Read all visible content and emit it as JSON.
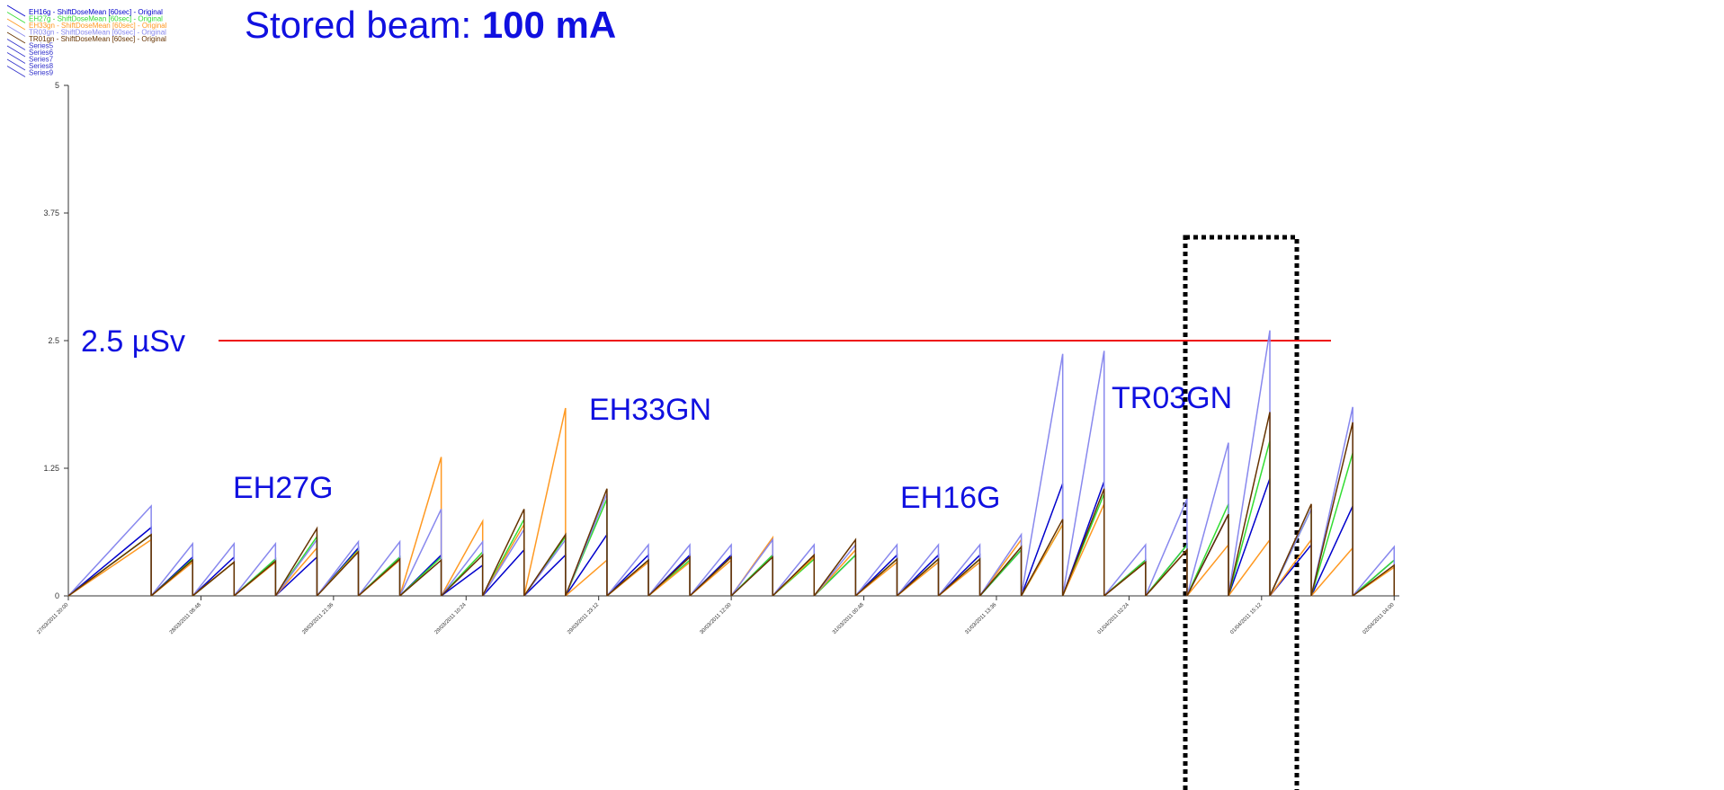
{
  "chart_data": {
    "type": "line",
    "title": "Stored beam: ",
    "title_value": "100 mA",
    "annotations": [
      "EH27G",
      "EH33GN",
      "EH16G",
      "TR03GN"
    ],
    "threshold": {
      "value": 2.5,
      "label": "2.5 µSv",
      "color": "#ee1111"
    },
    "x": [
      "28/03/2011 04:00",
      "28/03/2011 08:00",
      "28/03/2011 12:00",
      "28/03/2011 16:00",
      "28/03/2011 20:00",
      "29/03/2011 00:00",
      "29/03/2011 04:00",
      "29/03/2011 08:00",
      "29/03/2011 12:00",
      "29/03/2011 16:00",
      "29/03/2011 20:00",
      "30/03/2011 00:00",
      "30/03/2011 04:00",
      "30/03/2011 08:00",
      "30/03/2011 12:00",
      "30/03/2011 16:00",
      "30/03/2011 20:00",
      "31/03/2011 00:00",
      "31/03/2011 04:00",
      "31/03/2011 08:00",
      "31/03/2011 12:00",
      "31/03/2011 16:00",
      "31/03/2011 20:00",
      "01/04/2011 00:00",
      "01/04/2011 04:00",
      "01/04/2011 08:00",
      "01/04/2011 12:00",
      "01/04/2011 16:00",
      "01/04/2011 20:00",
      "02/04/2011 00:00",
      "02/04/2011 04:00"
    ],
    "xlim": [
      "27/03/2011 20:00",
      "02/04/2011 04:30"
    ],
    "xticks": [
      "27/03/2011 20:00",
      "28/03/2011 08:48",
      "28/03/2011 21:36",
      "29/03/2011 10:24",
      "29/03/2011 23:12",
      "30/03/2011 12:00",
      "31/03/2011 00:48",
      "31/03/2011 13:36",
      "01/04/2011 02:24",
      "01/04/2011 15:12",
      "02/04/2011 04:00"
    ],
    "ylim": [
      0,
      5
    ],
    "yticks": [
      0,
      1.25,
      2.5,
      3.75,
      5
    ],
    "series": [
      {
        "name": "EH16g - ShiftDoseMean [60sec] - Original",
        "color": "#0000cc",
        "values": [
          0.67,
          0.38,
          0.38,
          0.36,
          0.38,
          0.47,
          0.38,
          0.4,
          0.3,
          0.45,
          0.4,
          0.6,
          0.4,
          0.4,
          0.4,
          0.4,
          0.4,
          0.4,
          0.4,
          0.4,
          0.4,
          0.45,
          1.1,
          1.12,
          0.35,
          0.5,
          0.8,
          1.15,
          0.5,
          0.88,
          0.35
        ]
      },
      {
        "name": "EH27g - ShiftDoseMean [60sec] - Original",
        "color": "#33dd33",
        "values": [
          0.6,
          0.36,
          0.33,
          0.36,
          0.58,
          0.45,
          0.38,
          0.38,
          0.43,
          0.75,
          0.58,
          0.95,
          0.35,
          0.35,
          0.38,
          0.4,
          0.36,
          0.4,
          0.36,
          0.36,
          0.36,
          0.45,
          0.7,
          1.0,
          0.35,
          0.5,
          0.9,
          1.52,
          0.85,
          1.4,
          0.35
        ]
      },
      {
        "name": "EH33gn - ShiftDoseMean [60sec] - Original",
        "color": "#ff9922",
        "values": [
          0.55,
          0.33,
          0.33,
          0.33,
          0.47,
          0.44,
          0.35,
          1.36,
          0.73,
          0.7,
          1.84,
          0.35,
          0.33,
          0.33,
          0.35,
          0.57,
          0.38,
          0.45,
          0.33,
          0.33,
          0.33,
          0.55,
          0.7,
          0.9,
          0.33,
          0.45,
          0.5,
          0.55,
          0.55,
          0.47,
          0.28
        ]
      },
      {
        "name": "TR03gn - ShiftDoseMean [60sec] - Original",
        "color": "#8888ee",
        "values": [
          0.88,
          0.51,
          0.51,
          0.51,
          0.55,
          0.53,
          0.53,
          0.85,
          0.53,
          0.65,
          0.55,
          1.0,
          0.5,
          0.5,
          0.5,
          0.55,
          0.5,
          0.5,
          0.5,
          0.5,
          0.5,
          0.6,
          2.37,
          2.4,
          0.5,
          0.95,
          1.5,
          2.6,
          0.85,
          1.85,
          0.48
        ]
      },
      {
        "name": "TR01gn - ShiftDoseMean [60sec] - Original",
        "color": "#663300",
        "values": [
          0.6,
          0.35,
          0.33,
          0.34,
          0.66,
          0.43,
          0.36,
          0.35,
          0.4,
          0.85,
          0.6,
          1.05,
          0.35,
          0.38,
          0.38,
          0.38,
          0.4,
          0.55,
          0.36,
          0.36,
          0.36,
          0.48,
          0.75,
          1.05,
          0.33,
          0.45,
          0.8,
          1.8,
          0.9,
          1.7,
          0.3
        ]
      },
      {
        "name": "Series5",
        "color": "#3333cc",
        "values": [
          null,
          null,
          null,
          null,
          null,
          null,
          null,
          null,
          null,
          null,
          null,
          null,
          null,
          null,
          null,
          null,
          null,
          null,
          null,
          null,
          null,
          null,
          null,
          null,
          null,
          null,
          null,
          null,
          null,
          null,
          null
        ]
      },
      {
        "name": "Series6",
        "color": "#3333cc",
        "values": [
          null,
          null,
          null,
          null,
          null,
          null,
          null,
          null,
          null,
          null,
          null,
          null,
          null,
          null,
          null,
          null,
          null,
          null,
          null,
          null,
          null,
          null,
          null,
          null,
          null,
          null,
          null,
          null,
          null,
          null,
          null
        ]
      },
      {
        "name": "Series7",
        "color": "#3333cc",
        "values": [
          null,
          null,
          null,
          null,
          null,
          null,
          null,
          null,
          null,
          null,
          null,
          null,
          null,
          null,
          null,
          null,
          null,
          null,
          null,
          null,
          null,
          null,
          null,
          null,
          null,
          null,
          null,
          null,
          null,
          null,
          null
        ]
      },
      {
        "name": "Series8",
        "color": "#3333cc",
        "values": [
          null,
          null,
          null,
          null,
          null,
          null,
          null,
          null,
          null,
          null,
          null,
          null,
          null,
          null,
          null,
          null,
          null,
          null,
          null,
          null,
          null,
          null,
          null,
          null,
          null,
          null,
          null,
          null,
          null,
          null,
          null
        ]
      },
      {
        "name": "Series9",
        "color": "#3333cc",
        "values": [
          null,
          null,
          null,
          null,
          null,
          null,
          null,
          null,
          null,
          null,
          null,
          null,
          null,
          null,
          null,
          null,
          null,
          null,
          null,
          null,
          null,
          null,
          null,
          null,
          null,
          null,
          null,
          null,
          null,
          null,
          null
        ]
      }
    ]
  }
}
